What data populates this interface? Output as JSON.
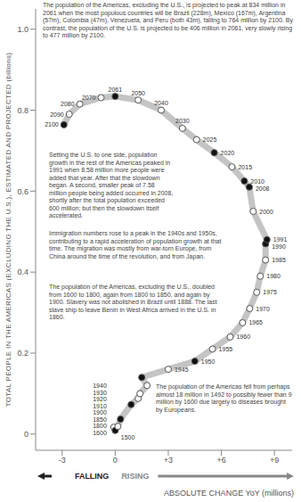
{
  "chart_data": {
    "type": "scatter",
    "y_label": "TOTAL PEOPLE IN THE AMERICAS (EXCLUDING THE U.S.), ESTIMATED AND PROJECTED (billions)",
    "x_label": "ABSOLUTE CHANGE YoY (millions)",
    "falling_label": "FALLING",
    "rising_label": "RISING",
    "annotations": [
      "The population of the Americas, excluding the U.S., is projected to peak at 834 million in 2061 when the most populous countries will be Brazil (228m), Mexico (167m), Argentina (57m), Colombia (47m), Venezuela, and Peru (both 43m), falling to 764 million by 2100. By contrast, the population of the U.S. is projected to be 406 million in 2061, very slowly rising to 477 million by 2100.",
      "Setting the U.S. to one side, population growth in the rest of the Americas peaked in 1991 when 8.58 million more people were added that year. After that the slowdown began. A second, smaller peak of 7.58 million people being added occurred in 2008, shortly after the total population exceeded 600 million; but then the slowdown itself accelerated.",
      "Immigration numbers rose to a peak in the 1940s and 1950s, contributing to a rapid acceleration of population growth at that time. The migration was mostly from war-torn Europe, from China around the time of the revolution, and from Japan.",
      "The population of the Americas, excluding the U.S., doubled from 1600 to 1800, again from 1800 to 1850, and again by 1900. Slavery was not abolished in Brazil until 1888. The last slave ship to leave Benin in West Africa arrived in the U.S. in 1860.",
      "The population of the Americas fell from perhaps almost 18 million in 1492 to possibly fewer than 9 million by 1600 due largely to diseases brought by Europeans."
    ],
    "point_labels": [
      "1500",
      "1600",
      "1800",
      "1850",
      "1900",
      "1910",
      "1920",
      "1930",
      "1940",
      "1945",
      "1950",
      "1955",
      "1960",
      "1965",
      "1970",
      "1975",
      "1980",
      "1985",
      "1990",
      "1991",
      "2000",
      "2008",
      "2010",
      "2015",
      "2020",
      "2025",
      "2030",
      "2040",
      "2050",
      "2061",
      "2070",
      "2080",
      "2090",
      "2100"
    ],
    "x": [
      -0.08,
      0,
      0.15,
      0.3,
      0.9,
      1.3,
      1.4,
      1.8,
      1.5,
      3.0,
      4.5,
      5.5,
      6.5,
      7.2,
      7.6,
      8.0,
      8.2,
      8.5,
      8.5,
      8.58,
      7.8,
      7.58,
      7.3,
      6.6,
      5.6,
      4.6,
      3.8,
      2.6,
      1.3,
      0,
      -0.8,
      -2.0,
      -2.6,
      -2.9
    ],
    "values": [
      0.017,
      0.009,
      0.019,
      0.037,
      0.073,
      0.088,
      0.1,
      0.12,
      0.14,
      0.16,
      0.18,
      0.21,
      0.24,
      0.275,
      0.31,
      0.35,
      0.39,
      0.43,
      0.47,
      0.48,
      0.55,
      0.61,
      0.625,
      0.66,
      0.695,
      0.727,
      0.755,
      0.8,
      0.825,
      0.834,
      0.831,
      0.815,
      0.79,
      0.764
    ],
    "colors": [
      "#ffffff",
      "#111111",
      "#ffffff",
      "#111111",
      "#111111",
      "#ffffff",
      "#ffffff",
      "#ffffff",
      "#111111",
      "#ffffff",
      "#111111",
      "#ffffff",
      "#ffffff",
      "#ffffff",
      "#ffffff",
      "#ffffff",
      "#ffffff",
      "#ffffff",
      "#111111",
      "#111111",
      "#ffffff",
      "#111111",
      "#111111",
      "#ffffff",
      "#111111",
      "#ffffff",
      "#ffffff",
      "#ffffff",
      "#ffffff",
      "#111111",
      "#ffffff",
      "#ffffff",
      "#ffffff",
      "#111111"
    ],
    "color": "#c4c4c4",
    "marker": "circle",
    "line_style": "solid",
    "xlim": [
      -4.5,
      10
    ],
    "ylim": [
      -0.04,
      1.05
    ],
    "xticks": [
      -3,
      0,
      {
        "value": 3,
        "label": "+3"
      },
      {
        "value": 6,
        "label": "+6"
      },
      {
        "value": 9,
        "label": "+9"
      }
    ],
    "yticks": [
      0,
      0.2,
      0.4,
      0.6,
      0.8,
      {
        "value": 1,
        "label": "1.0"
      }
    ],
    "grid": false
  }
}
